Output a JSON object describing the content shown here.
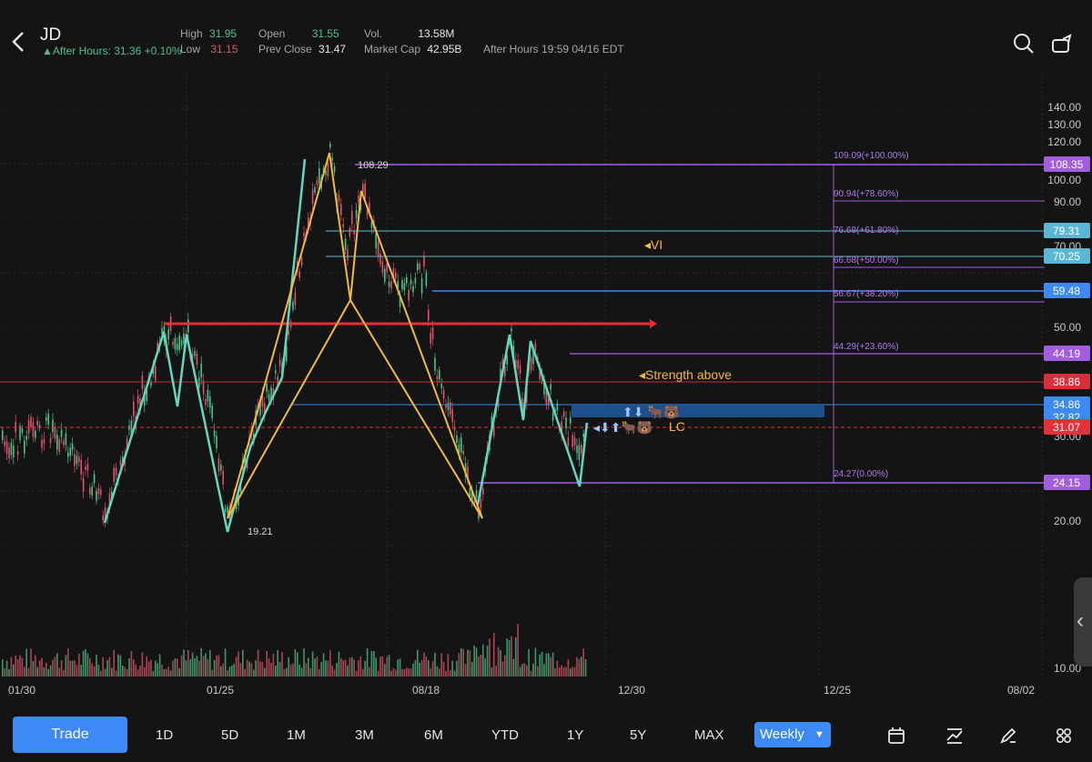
{
  "header": {
    "symbol": "JD",
    "after_hours": "After Hours: 31.36 +0.10%",
    "high_label": "High",
    "high_value": "31.95",
    "low_label": "Low",
    "low_value": "31.15",
    "open_label": "Open",
    "open_value": "31.55",
    "prev_close_label": "Prev Close",
    "prev_close_value": "31.47",
    "vol_label": "Vol.",
    "vol_value": "13.58M",
    "market_cap_label": "Market Cap",
    "market_cap_value": "42.95B",
    "after_hours_time": "After Hours 19:59 04/16 EDT"
  },
  "chart": {
    "y_ticks": [
      "140.00",
      "130.00",
      "120.00",
      "100.00",
      "90.00",
      "70.00",
      "50.00",
      "30.00",
      "20.00",
      "10.00"
    ],
    "x_ticks": [
      "01/30",
      "01/25",
      "08/18",
      "12/30",
      "12/25",
      "08/02"
    ],
    "badges": [
      "108.35",
      "79.31",
      "70.25",
      "59.48",
      "44.19",
      "38.86",
      "34.86",
      "32.82",
      "31.07",
      "24.15"
    ],
    "fib_labels": [
      "109.09(+100.00%)",
      "90.94(+78.60%)",
      "76.69(+61.80%)",
      "66.68(+50.00%)",
      "56.67(+38.20%)",
      "44.29(+23.60%)",
      "24.27(0.00%)"
    ],
    "high_mark": "108.29",
    "low_mark": "19.21",
    "annotation_vi": "VI",
    "annotation_strength": "Strength above",
    "annotation_lc": "LC",
    "colors": {
      "up": "#4cc38a",
      "down": "#e0546a",
      "fib": "#a35ee0",
      "cyan_pattern": "#62d6be",
      "orange_pattern": "#f3b940",
      "red_line": "#e8303a",
      "blue_zone": "#1f5aa0"
    }
  },
  "periods": [
    "1D",
    "5D",
    "1M",
    "3M",
    "6M",
    "YTD",
    "1Y",
    "5Y",
    "MAX"
  ],
  "toolbar": {
    "trade_label": "Trade",
    "interval_label": "Weekly"
  },
  "icons": [
    "back-icon",
    "search-icon",
    "share-icon",
    "calendar-icon",
    "indicator-icon",
    "draw-icon",
    "grid-icon"
  ]
}
